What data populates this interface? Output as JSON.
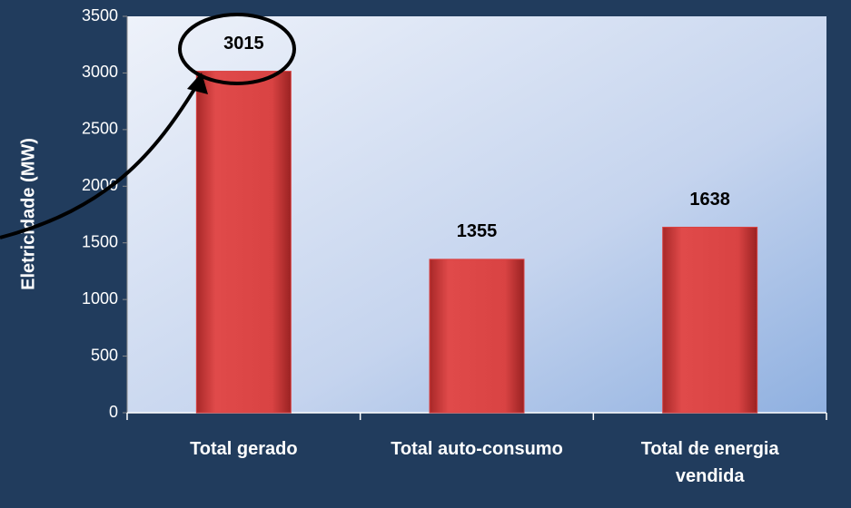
{
  "chart_data": {
    "type": "bar",
    "y_label": "Eletricidade (MW)",
    "categories": [
      "Total gerado",
      "Total auto-consumo",
      "Total de energia vendida"
    ],
    "values": [
      3015,
      1355,
      1638
    ],
    "color": "#d94343",
    "ylim": [
      0,
      3500
    ],
    "yticks": [
      0,
      500,
      1000,
      1500,
      2000,
      2500,
      3000,
      3500
    ]
  }
}
